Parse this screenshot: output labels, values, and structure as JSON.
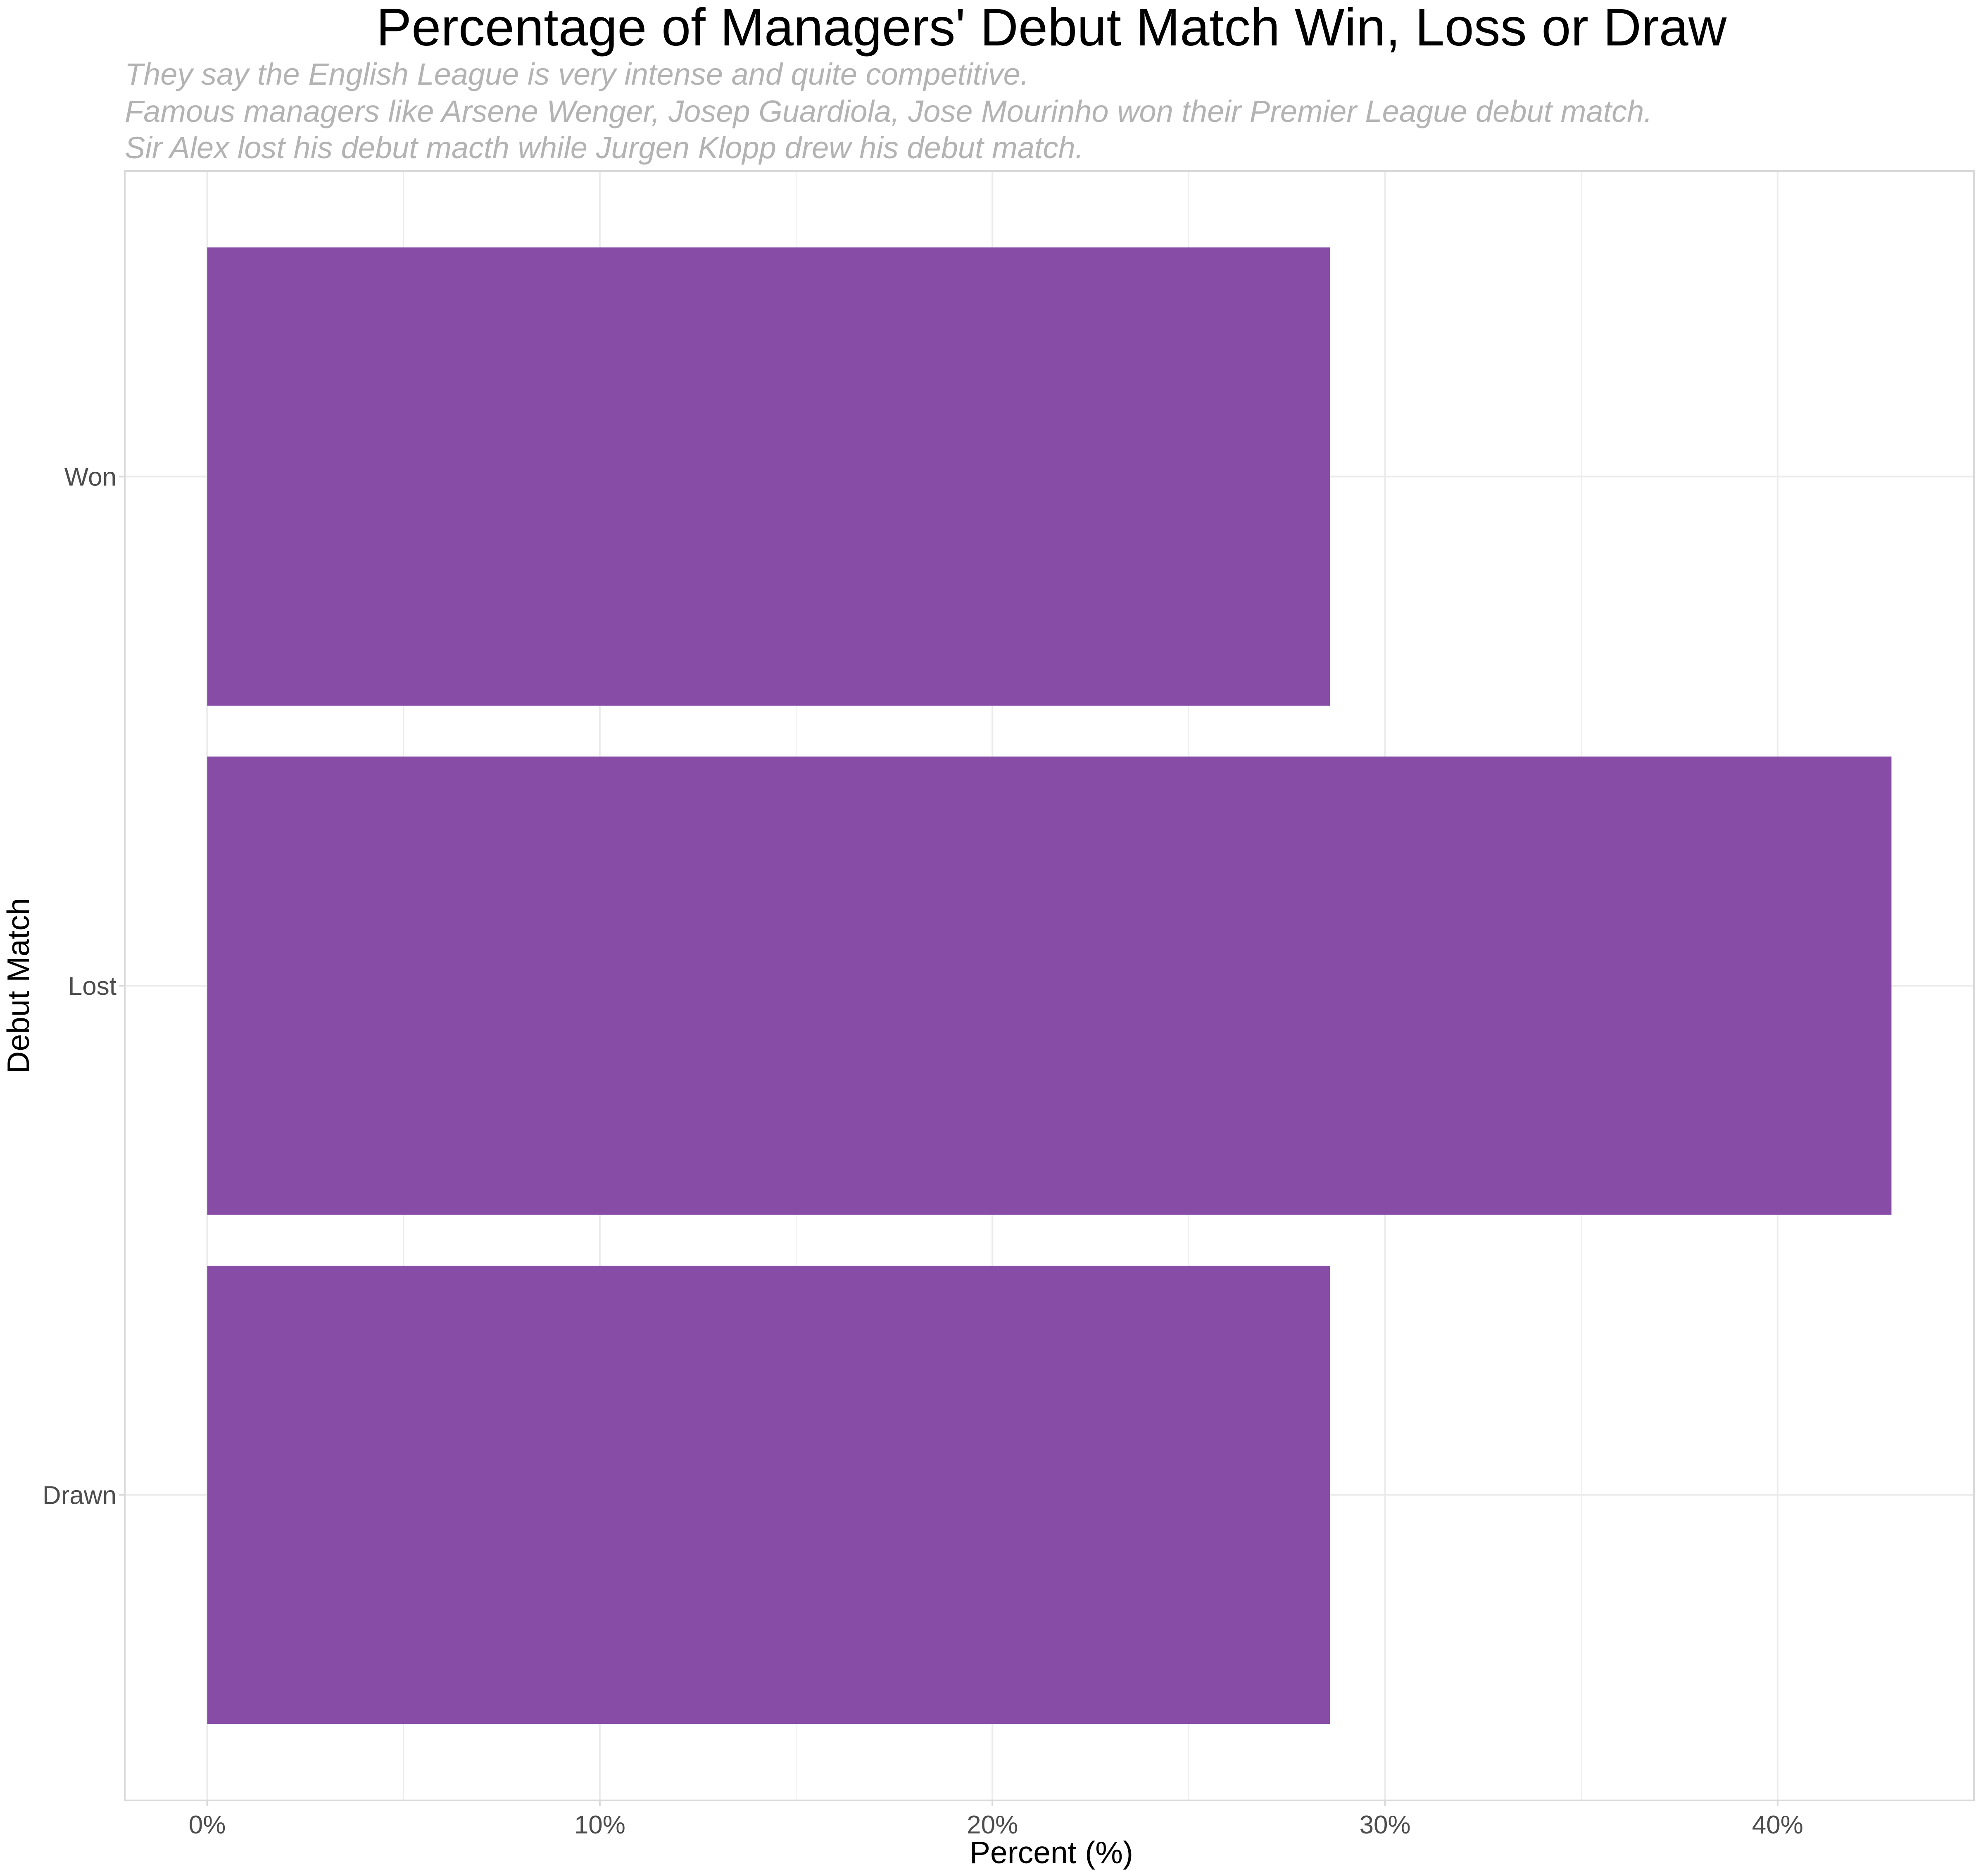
{
  "chart_data": {
    "type": "bar",
    "orientation": "horizontal",
    "title": "Percentage of Managers' Debut Match Win, Loss or Draw",
    "subtitle_lines": [
      "They say the English League is very intense and quite competitive.",
      "Famous managers like Arsene Wenger, Josep Guardiola, Jose Mourinho won their Premier League debut match.",
      "Sir Alex lost his debut macth while Jurgen Klopp drew his debut match."
    ],
    "xlabel": "Percent (%)",
    "ylabel": "Debut Match",
    "categories": [
      "Won",
      "Lost",
      "Drawn"
    ],
    "values": [
      28.6,
      42.9,
      28.6
    ],
    "xlim": [
      -2.1,
      45.0
    ],
    "x_ticks": [
      0,
      10,
      20,
      30,
      40
    ],
    "x_tick_labels": [
      "0%",
      "10%",
      "20%",
      "30%",
      "40%"
    ],
    "grid": true,
    "legend": "none",
    "colors": {
      "bar": "#874ca6",
      "grid": "#ebebeb",
      "panel_border": "#d9d9d9",
      "subtitle": "#b3b3b3"
    }
  }
}
